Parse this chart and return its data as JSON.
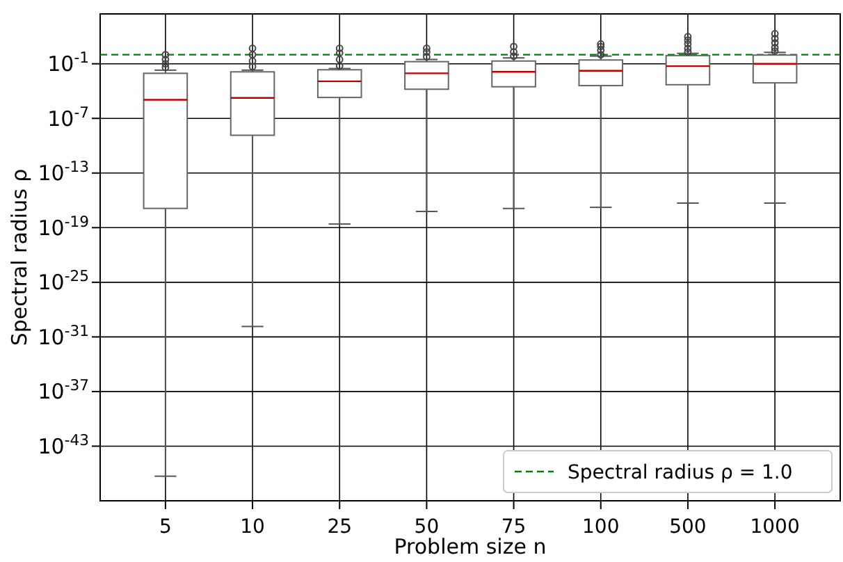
{
  "chart_data": {
    "type": "box",
    "xlabel": "Problem size n",
    "ylabel": "Spectral radius ρ",
    "categories": [
      "5",
      "10",
      "25",
      "50",
      "75",
      "100",
      "500",
      "1000"
    ],
    "boxes": [
      {
        "low": 5e-47,
        "q1": 1.3e-17,
        "median": 1.1e-05,
        "q3": 0.009,
        "high": 0.02,
        "outliers": [
          0.04,
          0.1,
          0.3,
          1
        ]
      },
      {
        "low": 1.4e-30,
        "q1": 1.4e-09,
        "median": 1.8e-05,
        "q3": 0.013,
        "high": 0.02,
        "outliers": [
          0.05,
          0.2,
          1,
          5
        ]
      },
      {
        "low": 2.5e-19,
        "q1": 2e-05,
        "median": 0.0012,
        "q3": 0.022,
        "high": 0.03,
        "outliers": [
          0.06,
          0.3,
          1.5,
          5
        ]
      },
      {
        "low": 6e-18,
        "q1": 0.00016,
        "median": 0.009,
        "q3": 0.17,
        "high": 0.3,
        "outliers": [
          0.6,
          2,
          5
        ]
      },
      {
        "low": 1.3e-17,
        "q1": 0.0003,
        "median": 0.013,
        "q3": 0.2,
        "high": 0.45,
        "outliers": [
          0.7,
          2,
          8
        ]
      },
      {
        "low": 1.7e-17,
        "q1": 0.0004,
        "median": 0.017,
        "q3": 0.26,
        "high": 0.7,
        "outliers": [
          1,
          3,
          8,
          15
        ]
      },
      {
        "low": 5e-17,
        "q1": 0.0005,
        "median": 0.055,
        "q3": 0.8,
        "high": 1.4,
        "outliers": [
          2,
          5,
          15,
          40,
          95
        ]
      },
      {
        "low": 5e-17,
        "q1": 0.0008,
        "median": 0.1,
        "q3": 0.9,
        "high": 1.8,
        "outliers": [
          2.5,
          6,
          20,
          60,
          200
        ]
      }
    ],
    "log": true,
    "ylim": [
      1e-49,
      30000.0
    ],
    "yticks": [
      {
        "value": 0.1,
        "label": "10$^{-1}$"
      },
      {
        "value": 1e-07,
        "label": "10$^{-7}$"
      },
      {
        "value": 1e-13,
        "label": "10$^{-13}$"
      },
      {
        "value": 1e-19,
        "label": "10$^{-19}$"
      },
      {
        "value": 1e-25,
        "label": "10$^{-25}$"
      },
      {
        "value": 1e-31,
        "label": "10$^{-31}$"
      },
      {
        "value": 1e-37,
        "label": "10$^{-37}$"
      },
      {
        "value": 1e-43,
        "label": "10$^{-43}$"
      }
    ],
    "ref_lines": [
      {
        "axis": "y",
        "value": 1,
        "label": "Spectral radius ρ = 1.0",
        "color": "#008000",
        "line_style": "dashed"
      }
    ],
    "grid": true,
    "legend": "bottom right"
  }
}
